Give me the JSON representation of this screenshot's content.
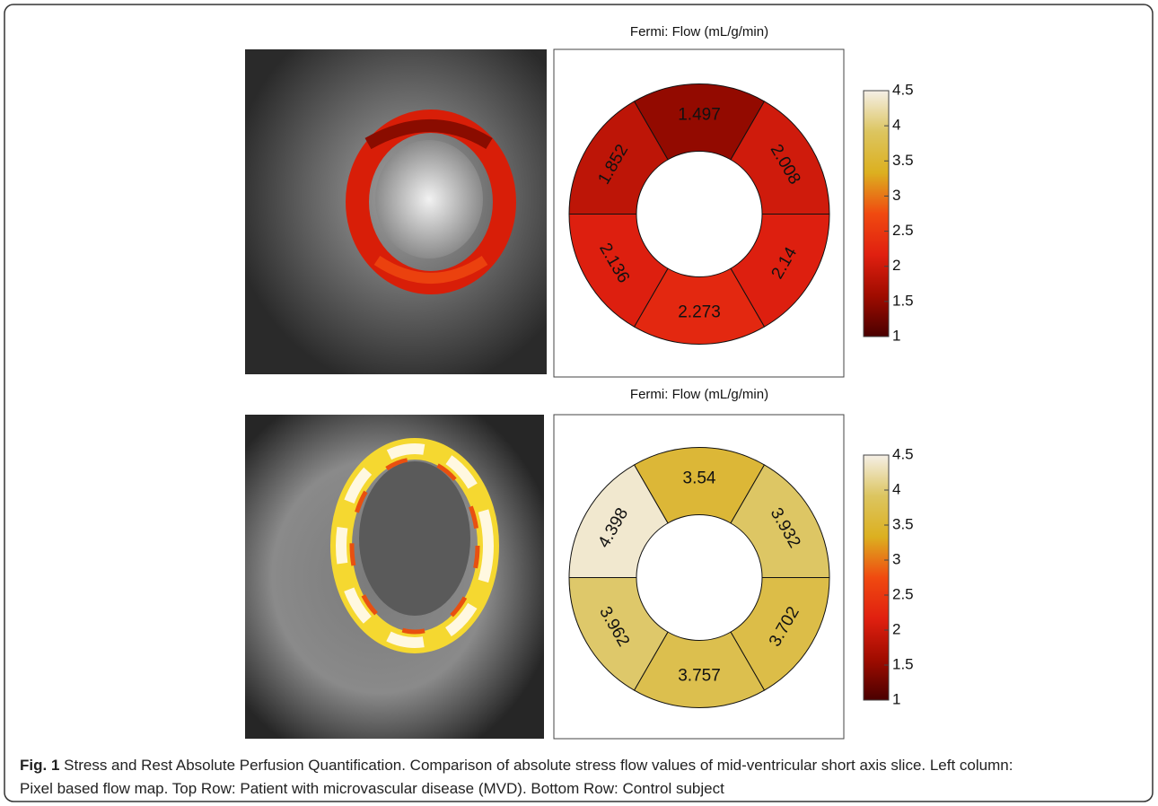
{
  "chart_data": [
    {
      "type": "donut",
      "title": "Fermi: Flow (mL/g/min)",
      "values": [
        1.497,
        2.008,
        2.14,
        2.273,
        2.136,
        1.852
      ],
      "colormap": [
        "#4a0000",
        "#a00c00",
        "#e02010",
        "#f04a10",
        "#dcb020",
        "#dcc560",
        "#f5efe6"
      ],
      "ylim": [
        1,
        4.5
      ],
      "yticks": [
        1,
        1.5,
        2,
        2.5,
        3,
        3.5,
        4,
        4.5
      ]
    },
    {
      "type": "donut",
      "title": "Fermi: Flow (mL/g/min)",
      "values": [
        3.54,
        3.932,
        3.702,
        3.757,
        3.962,
        4.398
      ],
      "colormap": [
        "#4a0000",
        "#a00c00",
        "#e02010",
        "#f04a10",
        "#dcb020",
        "#dcc560",
        "#f5efe6"
      ],
      "ylim": [
        1,
        4.5
      ],
      "yticks": [
        1,
        1.5,
        2,
        2.5,
        3,
        3.5,
        4,
        4.5
      ]
    }
  ],
  "caption": {
    "label": "Fig. 1",
    "text": "Stress and Rest Absolute Perfusion Quantification. Comparison of absolute stress flow values of mid-ventricular short axis slice. Left column:",
    "text2": "Pixel based flow map. Top Row: Patient with microvascular disease (MVD). Bottom Row: Control subject"
  }
}
